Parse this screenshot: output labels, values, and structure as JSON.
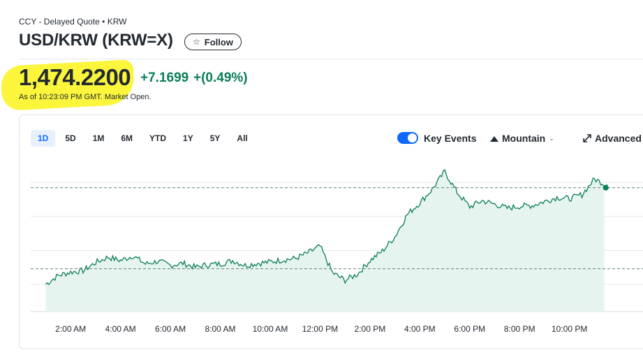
{
  "header": {
    "breadcrumb": "CCY - Delayed Quote • KRW",
    "title": "USD/KRW (KRW=X)",
    "follow_label": "Follow"
  },
  "quote": {
    "price": "1,474.2200",
    "change": "+7.1699",
    "change_percent": "+(0.49%)",
    "as_of": "As of 10:23:09 PM GMT. Market Open.",
    "positive_color": "#0a7e5a"
  },
  "range_tabs": [
    {
      "label": "1D",
      "active": true
    },
    {
      "label": "5D"
    },
    {
      "label": "1M"
    },
    {
      "label": "6M"
    },
    {
      "label": "YTD"
    },
    {
      "label": "1Y"
    },
    {
      "label": "5Y"
    },
    {
      "label": "All"
    }
  ],
  "controls": {
    "key_events_label": "Key Events",
    "key_events_on": true,
    "chart_type_label": "Mountain",
    "advanced_label": "Advanced",
    "accent_color": "#0f69ff"
  },
  "chart_data": {
    "type": "area",
    "x_ticks": [
      "2:00 AM",
      "4:00 AM",
      "6:00 AM",
      "8:00 AM",
      "10:00 AM",
      "12:00 PM",
      "2:00 PM",
      "4:00 PM",
      "6:00 PM",
      "8:00 PM",
      "10:00 PM"
    ],
    "x_hours": [
      0,
      0.5,
      1,
      1.5,
      2,
      2.5,
      3,
      3.5,
      4,
      4.5,
      5,
      5.5,
      6,
      6.5,
      7,
      7.5,
      8,
      8.5,
      9,
      9.5,
      10,
      10.5,
      11,
      11.5,
      12,
      12.5,
      13,
      13.5,
      14,
      14.5,
      15,
      15.5,
      16,
      16.5,
      17,
      17.5,
      18,
      18.5,
      19,
      19.5,
      20,
      20.5,
      21,
      21.5,
      22,
      22.5
    ],
    "values": [
      1460.0,
      1461.3,
      1461.8,
      1462.0,
      1463.2,
      1464.0,
      1463.5,
      1464.2,
      1463.0,
      1463.4,
      1462.8,
      1463.1,
      1462.5,
      1462.9,
      1463.0,
      1463.5,
      1462.8,
      1463.1,
      1463.3,
      1463.6,
      1463.8,
      1464.6,
      1465.6,
      1461.7,
      1460.6,
      1461.5,
      1463.5,
      1464.9,
      1467.0,
      1470.3,
      1472.0,
      1474.0,
      1476.6,
      1473.5,
      1471.4,
      1472.3,
      1471.8,
      1471.2,
      1471.5,
      1471.6,
      1472.2,
      1472.8,
      1472.6,
      1473.2,
      1475.5,
      1474.6
    ],
    "y_range": [
      1456,
      1478
    ],
    "reference_lines": [
      1474.22,
      1462.3
    ],
    "last_value": 1474.22,
    "line_color": "#0a7e5a",
    "fill_color": "#e6f4ef",
    "grid": true
  }
}
